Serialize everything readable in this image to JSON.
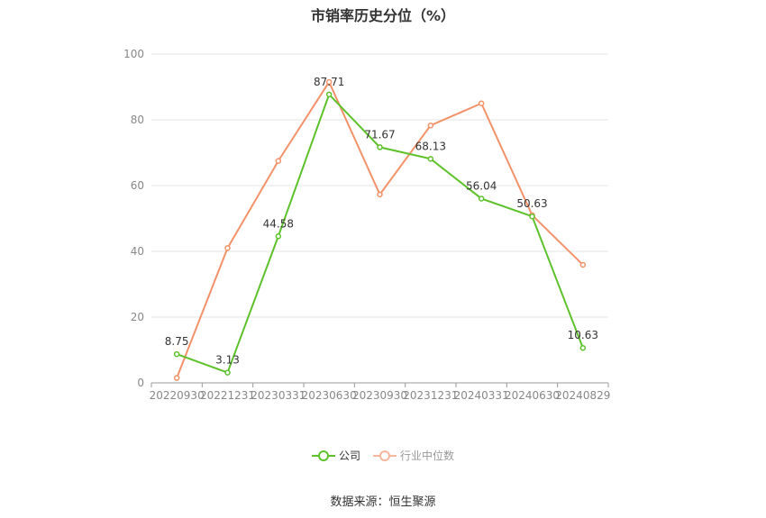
{
  "chart_data": {
    "type": "line",
    "title": "市销率历史分位（%）",
    "categories": [
      "20220930",
      "20221231",
      "20230331",
      "20230630",
      "20230930",
      "20231231",
      "20240331",
      "20240630",
      "20240829"
    ],
    "series": [
      {
        "name": "公司",
        "color": "#5ec12c",
        "values": [
          8.75,
          3.13,
          44.58,
          87.71,
          71.67,
          68.13,
          56.04,
          50.63,
          10.63
        ],
        "labels": [
          "8.75",
          "3.13",
          "44.58",
          "87.71",
          "71.67",
          "68.13",
          "56.04",
          "50.63",
          "10.63"
        ]
      },
      {
        "name": "行业中位数",
        "color": "#f2926a",
        "values": [
          1.5,
          41.0,
          67.5,
          91.5,
          57.3,
          78.3,
          85.0,
          51.0,
          35.9
        ]
      }
    ],
    "ylim": [
      0,
      100
    ],
    "yticks": [
      0,
      20,
      40,
      60,
      80,
      100
    ],
    "xlabel": "",
    "ylabel": "",
    "grid": true,
    "legend": "bottom-center"
  },
  "legend": {
    "company": "公司",
    "industry": "行业中位数"
  },
  "source": "数据来源：恒生聚源"
}
